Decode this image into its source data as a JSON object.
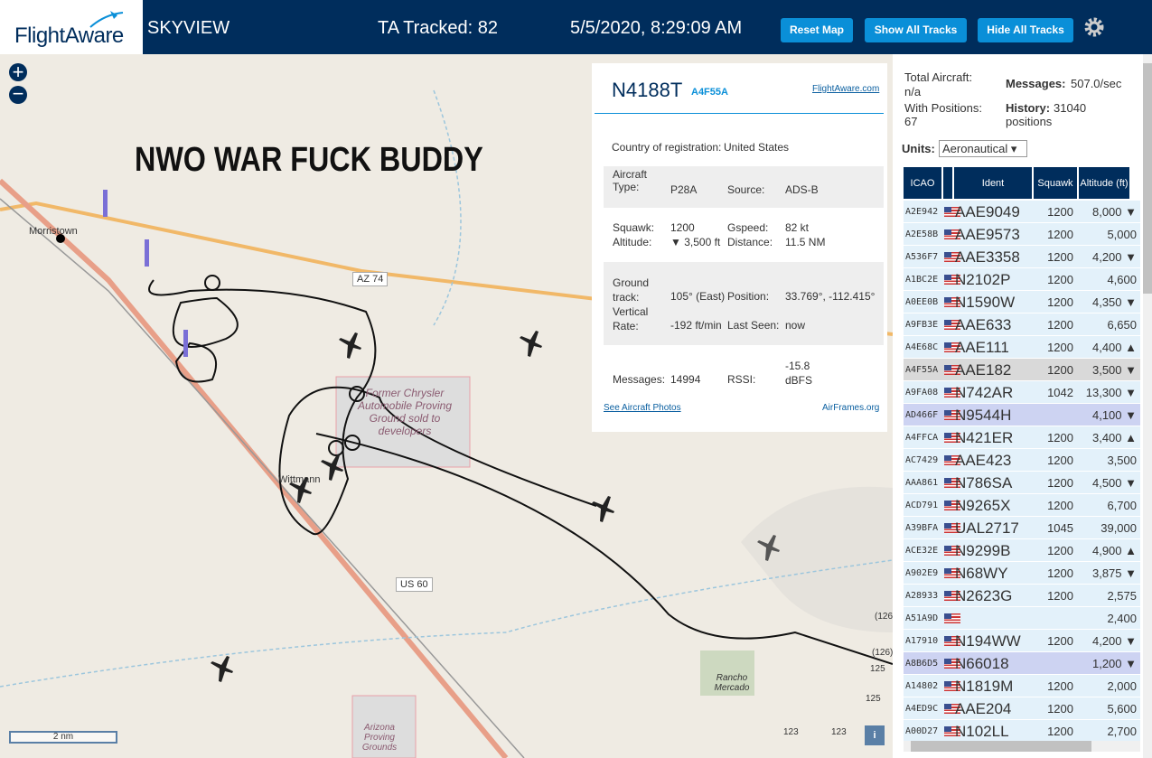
{
  "header": {
    "logo": "FlightAware",
    "app": "SKYVIEW",
    "tracked": "TA Tracked: 82",
    "datetime": "5/5/2020, 8:29:09 AM",
    "buttons": [
      "Reset Map",
      "Show All Tracks",
      "Hide All Tracks"
    ]
  },
  "map": {
    "overlay_text": "NWO WAR FUCK BUDDY",
    "labels": {
      "morristown": "Morristown",
      "az74": "AZ 74",
      "proving": "Former Chrysler Automobile Proving Ground sold to developers",
      "wittmann": "Wittmann",
      "us60": "US 60",
      "rancho": "Rancho Mercado",
      "azpg": "Arizona Proving Grounds",
      "r126a": "(126)",
      "r126b": "(126)",
      "r125a": "125",
      "r125b": "125",
      "r123a": "123",
      "r123b": "123"
    },
    "scale": "2 nm",
    "info": "i"
  },
  "popup": {
    "callsign": "N4188T",
    "hex": "A4F55A",
    "link": "FlightAware.com",
    "country_label": "Country of registration:",
    "country": "United States",
    "type_label": "Aircraft Type:",
    "type": "P28A",
    "source_label": "Source:",
    "source": "ADS-B",
    "squawk_label": "Squawk:",
    "squawk": "1200",
    "gspeed_label": "Gspeed:",
    "gspeed": "82 kt",
    "altitude_label": "Altitude:",
    "altitude": "▼ 3,500 ft",
    "distance_label": "Distance:",
    "distance": "11.5 NM",
    "track_label": "Ground track:",
    "track": "105° (East)",
    "position_label": "Position:",
    "position": "33.769°, -112.415°",
    "vrate_label": "Vertical Rate:",
    "vrate": "-192 ft/min",
    "seen_label": "Last Seen:",
    "seen": "now",
    "messages_label": "Messages:",
    "messages": "14994",
    "rssi_label": "RSSI:",
    "rssi": "-15.8 dBFS",
    "photos": "See Aircraft Photos",
    "airframes": "AirFrames.org"
  },
  "sidebar": {
    "total_label": "Total Aircraft:",
    "total": "n/a",
    "msg_label": "Messages:",
    "msg": "507.0/sec",
    "withpos_label": "With Positions:",
    "withpos": "67",
    "history_label": "History:",
    "history": "31040 positions",
    "units_label": "Units:",
    "units": "Aeronautical"
  },
  "table": {
    "headers": [
      "ICAO",
      "Ident",
      "Squawk",
      "Altitude (ft)"
    ],
    "rows": [
      {
        "icao": "A2E942",
        "ident": "AAE9049",
        "squawk": "1200",
        "altitude": "8,000 ▼"
      },
      {
        "icao": "A2E58B",
        "ident": "AAE9573",
        "squawk": "1200",
        "altitude": "5,000"
      },
      {
        "icao": "A536F7",
        "ident": "AAE3358",
        "squawk": "1200",
        "altitude": "4,200 ▼"
      },
      {
        "icao": "A1BC2E",
        "ident": "N2102P",
        "squawk": "1200",
        "altitude": "4,600"
      },
      {
        "icao": "A0EE0B",
        "ident": "N1590W",
        "squawk": "1200",
        "altitude": "4,350 ▼"
      },
      {
        "icao": "A9FB3E",
        "ident": "AAE633",
        "squawk": "1200",
        "altitude": "6,650"
      },
      {
        "icao": "A4E68C",
        "ident": "AAE111",
        "squawk": "1200",
        "altitude": "4,400 ▲"
      },
      {
        "icao": "A4F55A",
        "ident": "AAE182",
        "squawk": "1200",
        "altitude": "3,500 ▼"
      },
      {
        "icao": "A9FA08",
        "ident": "N742AR",
        "squawk": "1042",
        "altitude": "13,300 ▼"
      },
      {
        "icao": "AD466F",
        "ident": "N9544H",
        "altitude": "4,100 ▼"
      },
      {
        "icao": "A4FFCA",
        "ident": "N421ER",
        "squawk": "1200",
        "altitude": "3,400 ▲"
      },
      {
        "icao": "AC7429",
        "ident": "AAE423",
        "squawk": "1200",
        "altitude": "3,500"
      },
      {
        "icao": "AAA861",
        "ident": "N786SA",
        "squawk": "1200",
        "altitude": "4,500 ▼"
      },
      {
        "icao": "ACD791",
        "ident": "N9265X",
        "squawk": "1200",
        "altitude": "6,700"
      },
      {
        "icao": "A39BFA",
        "ident": "UAL2717",
        "squawk": "1045",
        "altitude": "39,000"
      },
      {
        "icao": "ACE32E",
        "ident": "N9299B",
        "squawk": "1200",
        "altitude": "4,900 ▲"
      },
      {
        "icao": "A902E9",
        "ident": "N68WY",
        "squawk": "1200",
        "altitude": "3,875 ▼"
      },
      {
        "icao": "A28933",
        "ident": "N2623G",
        "squawk": "1200",
        "altitude": "2,575"
      },
      {
        "icao": "A51A9D",
        "altitude": "2,400"
      },
      {
        "icao": "A17910",
        "ident": "N194WW",
        "squawk": "1200",
        "altitude": "4,200 ▼"
      },
      {
        "icao": "A8B6D5",
        "ident": "N66018",
        "altitude": "1,200 ▼"
      },
      {
        "icao": "A14802",
        "ident": "N1819M",
        "squawk": "1200",
        "altitude": "2,000"
      },
      {
        "icao": "A4ED9C",
        "ident": "AAE204",
        "squawk": "1200",
        "altitude": "5,600"
      },
      {
        "icao": "A00D27",
        "ident": "N102LL",
        "squawk": "1200",
        "altitude": "2,700"
      }
    ]
  }
}
